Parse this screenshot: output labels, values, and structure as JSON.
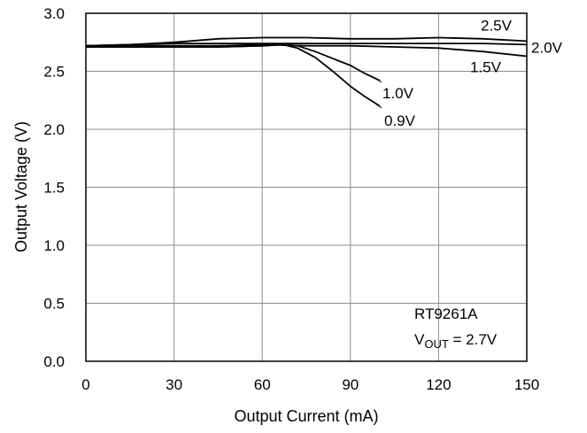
{
  "chart_data": {
    "type": "line",
    "xlabel": "Output Current (mA)",
    "ylabel": "Output Voltage (V)",
    "xlim": [
      0,
      150
    ],
    "ylim": [
      0.0,
      3.0
    ],
    "x_ticks": [
      0,
      30,
      60,
      90,
      120,
      150
    ],
    "y_ticks": [
      0.0,
      0.5,
      1.0,
      1.5,
      2.0,
      2.5,
      3.0
    ],
    "x_tick_labels": [
      "0",
      "30",
      "60",
      "90",
      "120",
      "150"
    ],
    "y_tick_labels": [
      "0.0",
      "0.5",
      "1.0",
      "1.5",
      "2.0",
      "2.5",
      "3.0"
    ],
    "grid": true,
    "annotation_line1": "RT9261A",
    "annotation_vout": "V",
    "annotation_vout_sub": "OUT",
    "annotation_vout_rest": " = 2.7V",
    "series": [
      {
        "name": "2.5V",
        "x": [
          0,
          15,
          30,
          45,
          60,
          75,
          90,
          105,
          120,
          135,
          150
        ],
        "y": [
          2.72,
          2.73,
          2.75,
          2.78,
          2.79,
          2.79,
          2.78,
          2.78,
          2.79,
          2.78,
          2.76
        ]
      },
      {
        "name": "2.0V",
        "x": [
          0,
          15,
          30,
          45,
          60,
          75,
          90,
          105,
          120,
          135,
          150
        ],
        "y": [
          2.72,
          2.73,
          2.74,
          2.74,
          2.74,
          2.74,
          2.74,
          2.74,
          2.74,
          2.74,
          2.73
        ]
      },
      {
        "name": "1.5V",
        "x": [
          0,
          15,
          30,
          45,
          60,
          75,
          90,
          105,
          120,
          135,
          150
        ],
        "y": [
          2.72,
          2.72,
          2.72,
          2.72,
          2.73,
          2.72,
          2.72,
          2.71,
          2.7,
          2.67,
          2.63
        ]
      },
      {
        "name": "1.0V",
        "x": [
          0,
          15,
          30,
          45,
          60,
          67,
          72,
          78,
          84,
          90,
          95,
          100
        ],
        "y": [
          2.71,
          2.71,
          2.71,
          2.71,
          2.72,
          2.73,
          2.72,
          2.67,
          2.61,
          2.55,
          2.48,
          2.42
        ]
      },
      {
        "name": "0.9V",
        "x": [
          0,
          15,
          30,
          45,
          60,
          67,
          72,
          78,
          84,
          90,
          95,
          100
        ],
        "y": [
          2.71,
          2.71,
          2.71,
          2.71,
          2.72,
          2.73,
          2.7,
          2.62,
          2.5,
          2.37,
          2.28,
          2.2
        ]
      }
    ]
  }
}
